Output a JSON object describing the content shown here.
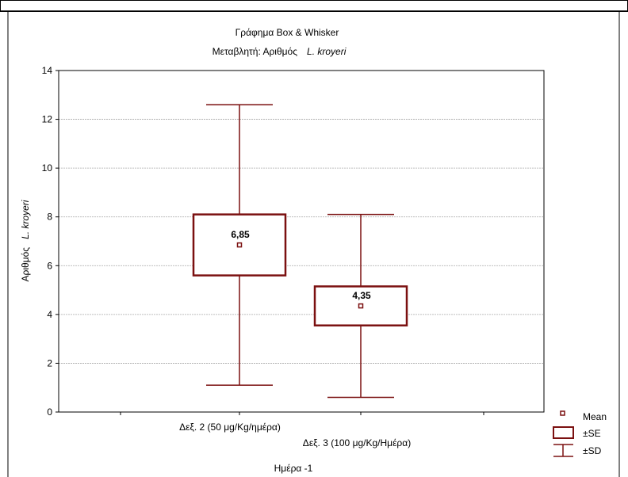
{
  "chart_data": {
    "type": "box",
    "title": "Γράφημα  Box & Whisker",
    "subtitle_prefix": "Μεταβλητή: Αριθμός",
    "subtitle_italic": "L. kroyeri",
    "ylabel_prefix": "Αριθμός",
    "ylabel_italic": "L. kroyeri",
    "xlabel": "Ημέρα -1",
    "ylim": [
      0,
      14
    ],
    "yticks": [
      "0",
      "2",
      "4",
      "6",
      "8",
      "10",
      "12",
      "14"
    ],
    "grid": true,
    "legend_placement": "bottom-right",
    "color": "#7b1010",
    "categories": [
      "Δεξ. 2 (50 μg/Kg/ημέρα)",
      "Δεξ. 3 (100 μg/Kg/Ημέρα)"
    ],
    "series": [
      {
        "mean": 6.85,
        "mean_label": "6,85",
        "se_low": 5.6,
        "se_high": 8.1,
        "sd_low": 1.1,
        "sd_high": 12.6
      },
      {
        "mean": 4.35,
        "mean_label": "4,35",
        "se_low": 3.55,
        "se_high": 5.15,
        "sd_low": 0.6,
        "sd_high": 8.1
      }
    ],
    "legend": {
      "mean": "Mean",
      "se": "±SE",
      "sd": "±SD"
    }
  }
}
